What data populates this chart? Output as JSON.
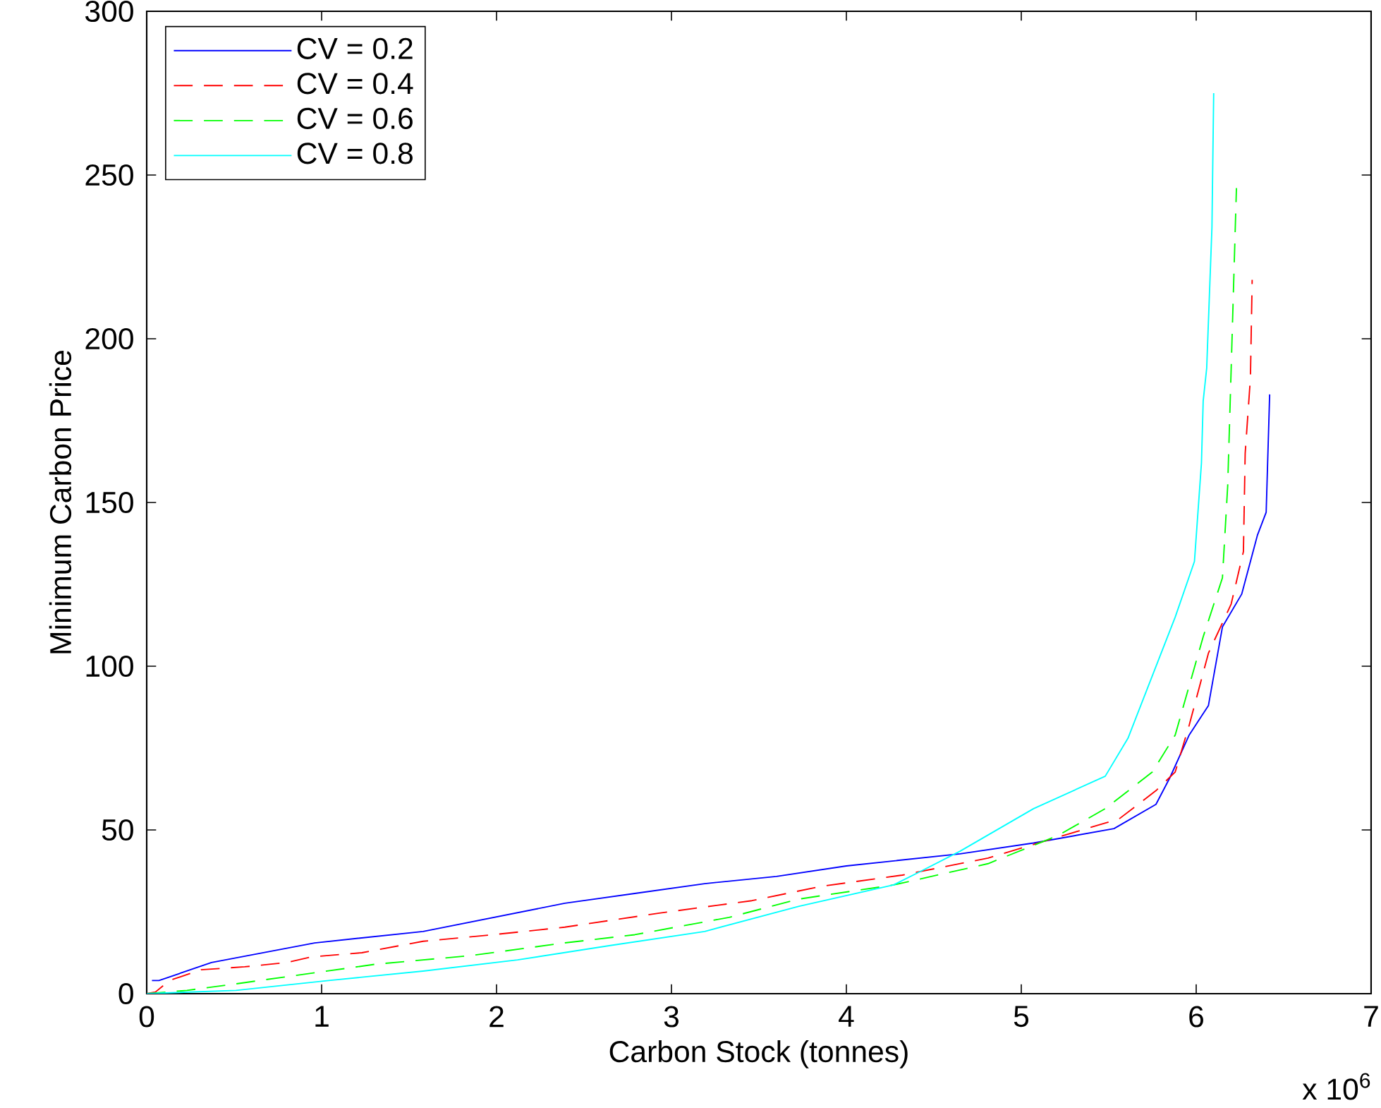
{
  "chart_data": {
    "type": "line",
    "xlabel": "Carbon Stock (tonnes)",
    "ylabel": "Minimum Carbon Price",
    "annotations": [
      "x 10$^{6}$"
    ],
    "xlim": [
      0,
      7
    ],
    "xticks": [
      0,
      1,
      2,
      3,
      4,
      5,
      6,
      7
    ],
    "ylim": [
      0,
      300
    ],
    "yticks": [
      0,
      50,
      100,
      150,
      200,
      250,
      300
    ],
    "grid": false,
    "legend": "top left",
    "marker": "none",
    "series": [
      {
        "name": "CV = 0.2",
        "color": "#0000ff",
        "line_style": "solid",
        "x": [
          0.03,
          0.07,
          0.37,
          0.96,
          1.58,
          2.39,
          2.79,
          3.19,
          3.6,
          4.0,
          4.65,
          5.07,
          5.53,
          5.77,
          5.85,
          5.96,
          6.07,
          6.15,
          6.26,
          6.35,
          6.4,
          6.42
        ],
        "values": [
          4,
          4,
          9.5,
          15.5,
          19,
          27.6,
          30.6,
          33.6,
          35.8,
          39,
          42.7,
          46,
          50.4,
          57.8,
          66,
          79,
          88,
          112,
          122,
          140,
          147,
          183
        ]
      },
      {
        "name": "CV = 0.4",
        "color": "#ff0000",
        "line_style": "dashed",
        "x": [
          0.0,
          0.05,
          0.13,
          0.31,
          0.56,
          0.8,
          0.94,
          1.23,
          1.58,
          1.98,
          2.39,
          2.93,
          3.46,
          3.86,
          4.32,
          4.81,
          5.21,
          5.43,
          5.56,
          5.77,
          5.88,
          5.96,
          6.07,
          6.2,
          6.27,
          6.28,
          6.31,
          6.32
        ],
        "values": [
          0,
          0.5,
          4,
          7.3,
          8.2,
          9.5,
          11.2,
          12.5,
          16,
          18,
          20.3,
          24.6,
          28.4,
          32.8,
          36.2,
          41.4,
          47.8,
          51.3,
          53.4,
          62,
          67.7,
          82,
          104,
          119,
          135,
          165,
          188,
          218
        ]
      },
      {
        "name": "CV = 0.6",
        "color": "#00ff00",
        "line_style": "dashed",
        "x": [
          0.0,
          0.23,
          0.51,
          0.91,
          1.31,
          1.85,
          2.39,
          2.79,
          3.33,
          3.73,
          4.27,
          4.81,
          5.21,
          5.48,
          5.75,
          5.88,
          6.04,
          6.15,
          6.18,
          6.2,
          6.23
        ],
        "values": [
          0,
          1,
          3,
          6,
          9,
          11.6,
          15.5,
          18,
          23.3,
          28.9,
          33.2,
          39.7,
          48.3,
          56.5,
          67.7,
          79,
          109,
          127,
          155,
          191,
          246
        ]
      },
      {
        "name": "CV = 0.8",
        "color": "#00ffff",
        "line_style": "solid",
        "x": [
          0.0,
          0.51,
          1.04,
          1.58,
          2.12,
          2.65,
          3.19,
          3.73,
          4.27,
          4.43,
          4.65,
          5.07,
          5.48,
          5.61,
          5.88,
          5.99,
          6.03,
          6.04,
          6.06,
          6.09,
          6.1
        ],
        "values": [
          0,
          1,
          4,
          6.9,
          10.3,
          14.7,
          19,
          26.7,
          33.2,
          37.5,
          43.5,
          56.5,
          66.4,
          78,
          115,
          132,
          162,
          181,
          191,
          234,
          275
        ]
      }
    ]
  }
}
